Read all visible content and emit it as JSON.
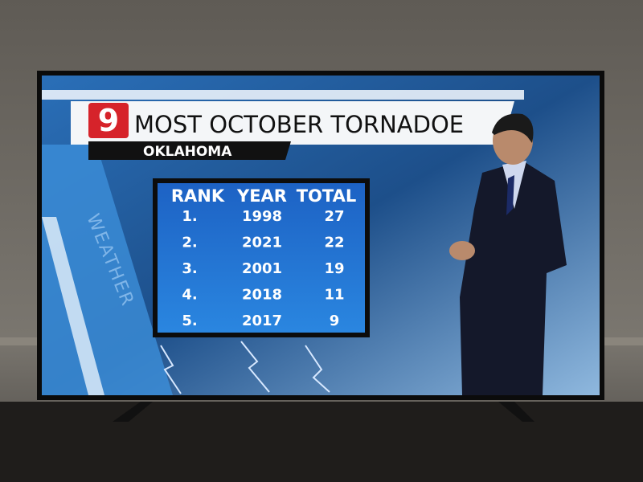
{
  "logo": "9",
  "banner": {
    "title": "MOST OCTOBER TORNADOE",
    "subtitle": "OKLAHOMA"
  },
  "side_label": "WEATHER",
  "table": {
    "header": [
      "RANK",
      "YEAR",
      "TOTAL"
    ],
    "rows": [
      [
        "1.",
        1998,
        27
      ],
      [
        "2.",
        2021,
        22
      ],
      [
        "3.",
        2001,
        19
      ],
      [
        "4.",
        2018,
        11
      ],
      [
        "5.",
        2017,
        9
      ]
    ]
  }
}
